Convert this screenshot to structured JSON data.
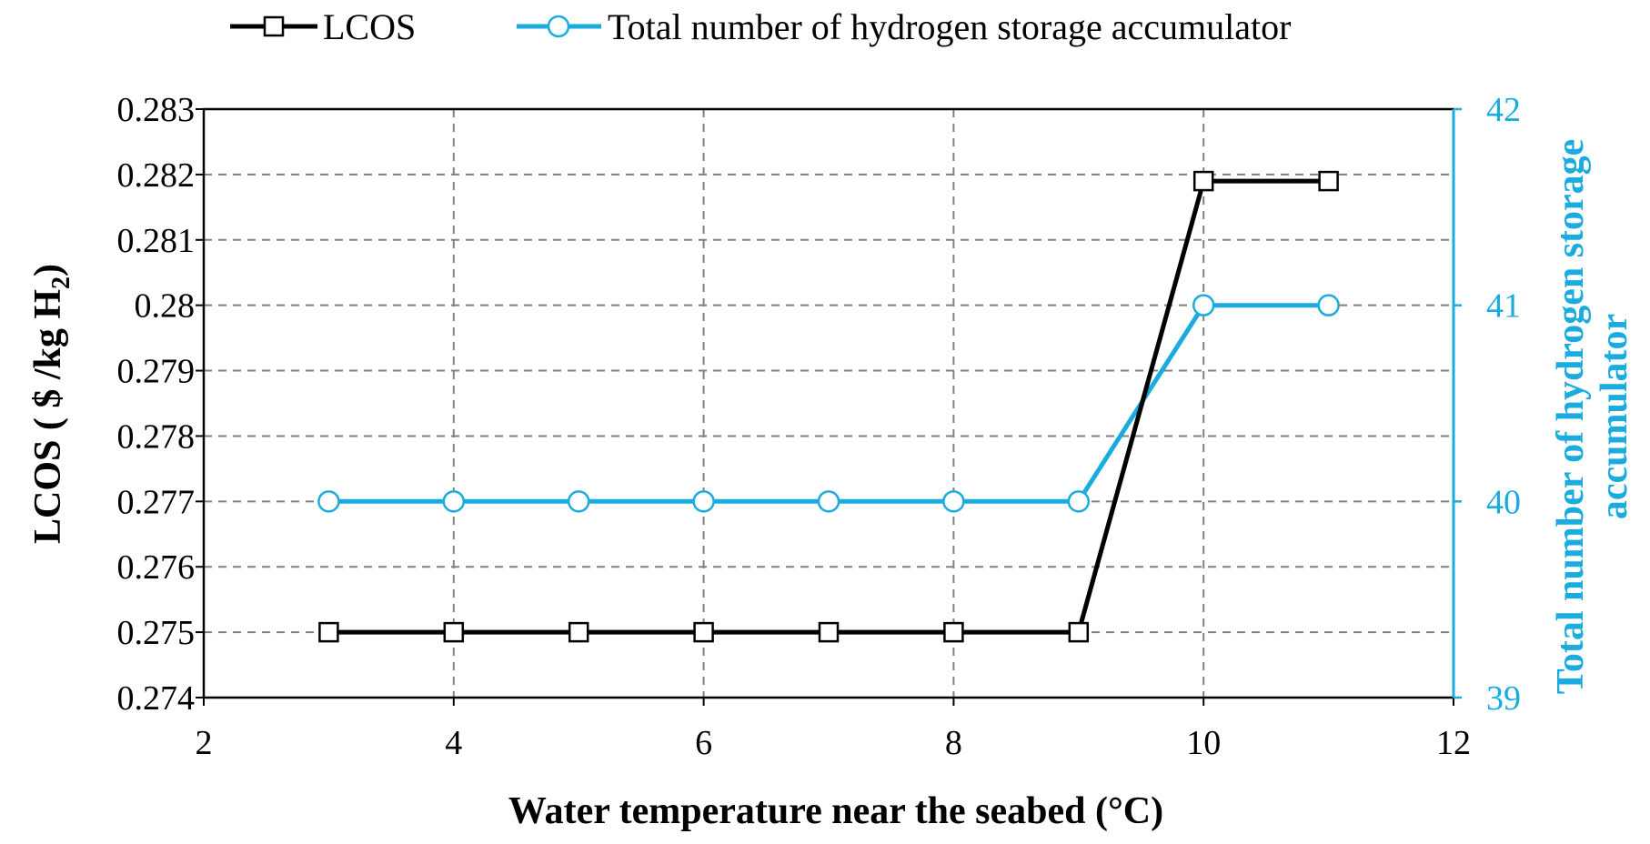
{
  "chart_data": {
    "type": "line",
    "x": [
      3,
      4,
      5,
      6,
      7,
      8,
      9,
      10,
      11
    ],
    "series": [
      {
        "name": "LCOS",
        "axis": "left",
        "marker": "square",
        "color": "#000000",
        "values": [
          0.275,
          0.275,
          0.275,
          0.275,
          0.275,
          0.275,
          0.275,
          0.2819,
          0.2819
        ]
      },
      {
        "name": "Total number of hydrogen storage accumulator",
        "axis": "right",
        "marker": "circle",
        "color": "#1AACDF",
        "values": [
          40,
          40,
          40,
          40,
          40,
          40,
          40,
          41,
          41
        ]
      }
    ],
    "xlabel": "Water temperature near the seabed (°C)",
    "ylabel_left": {
      "main": "LCOS ( $ /kg H",
      "subscript": "2",
      "close": ")"
    },
    "ylabel_right_lines": [
      "Total number of hydrogen storage",
      "accumulator"
    ],
    "xlim": [
      2,
      12
    ],
    "xticks": [
      "2",
      "4",
      "6",
      "8",
      "10",
      "12"
    ],
    "ylim_left": [
      0.274,
      0.283
    ],
    "yticks_left": [
      "0.274",
      "0.275",
      "0.276",
      "0.277",
      "0.278",
      "0.279",
      "0.28",
      "0.281",
      "0.282",
      "0.283"
    ],
    "ylim_right": [
      39,
      42
    ],
    "yticks_right": [
      "39",
      "40",
      "41",
      "42"
    ],
    "grid": true,
    "legend_position": "top"
  }
}
